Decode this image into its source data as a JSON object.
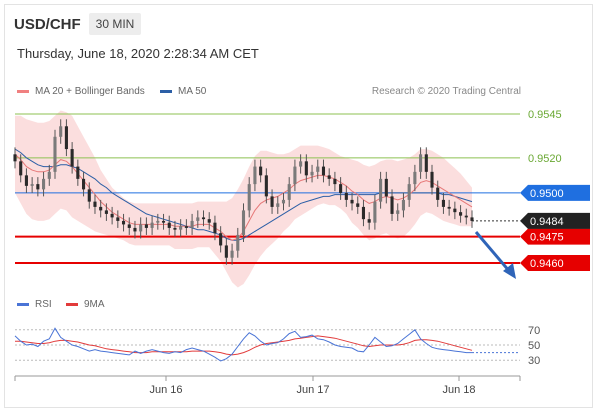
{
  "header": {
    "symbol": "USD/CHF",
    "timeframe": "30 MIN"
  },
  "datetime": "Thursday, June 18, 2020 2:28:34 AM CET",
  "legend_main": [
    {
      "label": "MA 20 + Bollinger Bands",
      "color": "#f08080"
    },
    {
      "label": "MA 50",
      "color": "#2c5fa6"
    }
  ],
  "legend_rsi": [
    {
      "label": "RSI",
      "color": "#4a74d6"
    },
    {
      "label": "9MA",
      "color": "#e23b3b"
    }
  ],
  "credit": "Research © 2020 Trading Central",
  "chart_data": {
    "type": "line",
    "x_ticks": [
      "Jun 16",
      "Jun 17",
      "Jun 18"
    ],
    "ylim": [
      0.9448,
      0.9553
    ],
    "levels": [
      {
        "value": 0.9545,
        "label": "0.9545",
        "kind": "resistance",
        "color": "#8cc152"
      },
      {
        "value": 0.952,
        "label": "0.9520",
        "kind": "resistance",
        "color": "#8cc152"
      },
      {
        "value": 0.95,
        "label": "0.9500",
        "kind": "pivot",
        "color": "#1f6fe0"
      },
      {
        "value": 0.9475,
        "label": "0.9475",
        "kind": "support",
        "color": "#e60000"
      },
      {
        "value": 0.946,
        "label": "0.9460",
        "kind": "support",
        "color": "#e60000"
      }
    ],
    "last_price": {
      "value": 0.9484,
      "label": "0.9484"
    },
    "price_close": [
      0.9518,
      0.951,
      0.9504,
      0.9505,
      0.9502,
      0.9508,
      0.9512,
      0.9532,
      0.9538,
      0.9525,
      0.9515,
      0.9508,
      0.9502,
      0.9495,
      0.9492,
      0.949,
      0.9488,
      0.9486,
      0.9484,
      0.9482,
      0.948,
      0.9478,
      0.9482,
      0.948,
      0.9483,
      0.9484,
      0.9483,
      0.948,
      0.9479,
      0.9481,
      0.948,
      0.9484,
      0.9486,
      0.9485,
      0.9483,
      0.9477,
      0.947,
      0.9463,
      0.9467,
      0.9476,
      0.949,
      0.9505,
      0.9515,
      0.951,
      0.9498,
      0.9492,
      0.9494,
      0.9496,
      0.9505,
      0.9515,
      0.9518,
      0.951,
      0.9512,
      0.9515,
      0.951,
      0.9508,
      0.9505,
      0.95,
      0.9496,
      0.9494,
      0.9492,
      0.9485,
      0.9483,
      0.9495,
      0.9508,
      0.9498,
      0.9488,
      0.949,
      0.9496,
      0.9505,
      0.9512,
      0.9522,
      0.9512,
      0.9503,
      0.9496,
      0.9492,
      0.9491,
      0.9489,
      0.9487,
      0.9486,
      0.9484
    ],
    "ma20": [
      0.9522,
      0.9519,
      0.9515,
      0.9513,
      0.9512,
      0.9512,
      0.9513,
      0.9516,
      0.9519,
      0.9518,
      0.9515,
      0.9511,
      0.9507,
      0.9503,
      0.9499,
      0.9495,
      0.9492,
      0.9489,
      0.9487,
      0.9485,
      0.9483,
      0.9482,
      0.9482,
      0.9482,
      0.9482,
      0.9482,
      0.9482,
      0.9482,
      0.9481,
      0.9481,
      0.9481,
      0.9481,
      0.9482,
      0.9482,
      0.9482,
      0.948,
      0.9478,
      0.9475,
      0.9473,
      0.9474,
      0.9478,
      0.9484,
      0.949,
      0.9494,
      0.9496,
      0.9497,
      0.9498,
      0.95,
      0.9502,
      0.9505,
      0.9507,
      0.9508,
      0.9509,
      0.951,
      0.951,
      0.9509,
      0.9508,
      0.9506,
      0.9504,
      0.9501,
      0.9499,
      0.9496,
      0.9494,
      0.9495,
      0.9497,
      0.9498,
      0.9497,
      0.9496,
      0.9497,
      0.9499,
      0.9502,
      0.9506,
      0.9507,
      0.9506,
      0.9504,
      0.9502,
      0.95,
      0.9498,
      0.9496,
      0.9494,
      0.9492
    ],
    "bb_upper": [
      0.9544,
      0.9544,
      0.9542,
      0.9541,
      0.954,
      0.954,
      0.9541,
      0.9544,
      0.9547,
      0.9546,
      0.9544,
      0.9538,
      0.9532,
      0.9526,
      0.952,
      0.9513,
      0.9508,
      0.9503,
      0.95,
      0.9497,
      0.9495,
      0.9494,
      0.9494,
      0.9494,
      0.9494,
      0.9494,
      0.9494,
      0.9494,
      0.9494,
      0.9494,
      0.9494,
      0.9494,
      0.9495,
      0.9495,
      0.9495,
      0.9495,
      0.9495,
      0.9495,
      0.9497,
      0.9502,
      0.9508,
      0.9515,
      0.9521,
      0.9524,
      0.9524,
      0.9523,
      0.9522,
      0.9522,
      0.9523,
      0.9525,
      0.9527,
      0.9527,
      0.9527,
      0.9527,
      0.9526,
      0.9525,
      0.9523,
      0.9521,
      0.952,
      0.9519,
      0.9518,
      0.9516,
      0.9515,
      0.9516,
      0.9518,
      0.9519,
      0.9519,
      0.9518,
      0.9519,
      0.952,
      0.9522,
      0.9525,
      0.9525,
      0.9524,
      0.9522,
      0.952,
      0.9517,
      0.9514,
      0.9511,
      0.9507,
      0.9503
    ],
    "bb_lower": [
      0.95,
      0.9494,
      0.9488,
      0.9485,
      0.9484,
      0.9484,
      0.9485,
      0.9488,
      0.9491,
      0.949,
      0.9486,
      0.9484,
      0.9482,
      0.948,
      0.9478,
      0.9477,
      0.9476,
      0.9475,
      0.9474,
      0.9473,
      0.9471,
      0.947,
      0.947,
      0.947,
      0.947,
      0.947,
      0.947,
      0.947,
      0.9468,
      0.9468,
      0.9468,
      0.9468,
      0.9469,
      0.9469,
      0.9469,
      0.9465,
      0.9461,
      0.9455,
      0.9449,
      0.9446,
      0.9448,
      0.9453,
      0.9459,
      0.9464,
      0.9468,
      0.9471,
      0.9474,
      0.9478,
      0.9481,
      0.9485,
      0.9487,
      0.9489,
      0.9491,
      0.9493,
      0.9494,
      0.9493,
      0.9493,
      0.9491,
      0.9488,
      0.9483,
      0.948,
      0.9476,
      0.9473,
      0.9474,
      0.9476,
      0.9477,
      0.9475,
      0.9474,
      0.9475,
      0.9478,
      0.9482,
      0.9487,
      0.9489,
      0.9488,
      0.9486,
      0.9484,
      0.9483,
      0.9482,
      0.9481,
      0.9481,
      0.9481
    ],
    "ma50": [
      0.9525,
      0.9523,
      0.952,
      0.9518,
      0.9516,
      0.9515,
      0.9515,
      0.9515,
      0.9516,
      0.9516,
      0.9515,
      0.9514,
      0.9512,
      0.951,
      0.9508,
      0.9505,
      0.9503,
      0.95,
      0.9498,
      0.9496,
      0.9494,
      0.9492,
      0.949,
      0.9488,
      0.9487,
      0.9486,
      0.9485,
      0.9484,
      0.9483,
      0.9482,
      0.9481,
      0.948,
      0.9479,
      0.9479,
      0.9478,
      0.9477,
      0.9476,
      0.9474,
      0.9473,
      0.9473,
      0.9474,
      0.9476,
      0.9478,
      0.948,
      0.9482,
      0.9484,
      0.9486,
      0.9488,
      0.949,
      0.9492,
      0.9494,
      0.9495,
      0.9496,
      0.9497,
      0.9498,
      0.9498,
      0.9499,
      0.9499,
      0.9499,
      0.9499,
      0.9499,
      0.9499,
      0.9499,
      0.9499,
      0.95,
      0.95,
      0.95,
      0.95,
      0.95,
      0.95,
      0.95,
      0.95,
      0.95,
      0.95,
      0.95,
      0.9499,
      0.9499,
      0.9498,
      0.9497,
      0.9496,
      0.9495
    ],
    "rsi": {
      "ylim": [
        25,
        75
      ],
      "ticks": [
        70,
        50,
        30
      ],
      "rsi": [
        62,
        55,
        50,
        51,
        48,
        55,
        58,
        72,
        60,
        55,
        50,
        48,
        45,
        42,
        44,
        42,
        41,
        40,
        39,
        38,
        37,
        42,
        39,
        42,
        44,
        42,
        40,
        39,
        41,
        40,
        44,
        46,
        44,
        42,
        38,
        34,
        29,
        32,
        38,
        48,
        58,
        66,
        62,
        55,
        50,
        52,
        53,
        58,
        65,
        68,
        60,
        61,
        63,
        58,
        57,
        54,
        50,
        48,
        47,
        46,
        42,
        41,
        50,
        60,
        54,
        48,
        49,
        52,
        58,
        64,
        70,
        58,
        52,
        47,
        45,
        44,
        43,
        42,
        41,
        40,
        40
      ],
      "ma9": [
        55,
        55,
        54,
        53,
        52,
        52,
        53,
        55,
        56,
        56,
        55,
        54,
        52,
        50,
        49,
        47,
        45,
        44,
        43,
        42,
        41,
        40,
        40,
        40,
        41,
        41,
        41,
        41,
        41,
        41,
        41,
        42,
        42,
        42,
        42,
        41,
        40,
        38,
        37,
        38,
        40,
        43,
        47,
        50,
        52,
        53,
        54,
        55,
        56,
        58,
        59,
        60,
        61,
        62,
        61,
        60,
        59,
        57,
        55,
        53,
        51,
        49,
        48,
        49,
        50,
        50,
        50,
        50,
        51,
        53,
        56,
        57,
        57,
        56,
        55,
        53,
        51,
        49,
        47,
        45,
        43
      ]
    }
  }
}
